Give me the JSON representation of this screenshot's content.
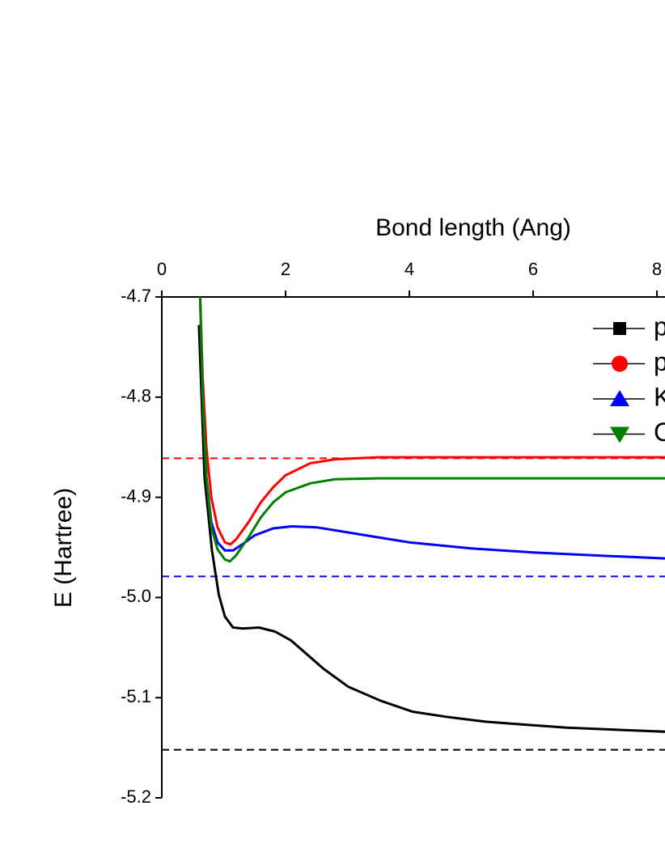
{
  "chart_data": {
    "type": "line",
    "x_label": "Bond length (Ang)",
    "y_label": "E (Hartree)",
    "xlim": [
      0,
      8.13
    ],
    "xticks": [
      0,
      2,
      4,
      6,
      8
    ],
    "ylim": [
      -5.2,
      -4.7
    ],
    "yticks": [
      {
        "value": -5.2,
        "label": "-5.2"
      },
      {
        "value": -5.1,
        "label": "-5.1"
      },
      {
        "value": -5,
        "label": "-5.0"
      },
      {
        "value": -4.9,
        "label": "-4.9"
      },
      {
        "value": -4.8,
        "label": "-4.8"
      },
      {
        "value": -4.7,
        "label": "-4.7"
      }
    ],
    "legend_position": "top-right",
    "series": [
      {
        "name": "p",
        "color": "#000000",
        "marker": "square",
        "x": [
          0.6,
          0.69,
          0.81,
          0.92,
          1.02,
          1.15,
          1.31,
          1.57,
          1.83,
          2.09,
          2.61,
          3.01,
          3.53,
          4.05,
          4.58,
          5.23,
          5.88,
          6.54,
          7.32,
          8.13
        ],
        "values": [
          -4.728,
          -4.88,
          -4.953,
          -4.997,
          -5.019,
          -5.03,
          -5.031,
          -5.03,
          -5.034,
          -5.043,
          -5.071,
          -5.089,
          -5.103,
          -5.114,
          -5.119,
          -5.124,
          -5.127,
          -5.13,
          -5.132,
          -5.134
        ]
      },
      {
        "name": "p",
        "color": "#ff0000",
        "marker": "circle",
        "x": [
          0.62,
          0.66,
          0.72,
          0.8,
          0.9,
          1.02,
          1.11,
          1.2,
          1.4,
          1.6,
          1.8,
          2.0,
          2.4,
          2.8,
          3.5,
          5,
          8.13
        ],
        "values": [
          -4.7,
          -4.78,
          -4.85,
          -4.9,
          -4.93,
          -4.945,
          -4.947,
          -4.942,
          -4.925,
          -4.905,
          -4.89,
          -4.878,
          -4.866,
          -4.862,
          -4.86,
          -4.86,
          -4.86
        ]
      },
      {
        "name": "K",
        "color": "#0000ff",
        "marker": "triangle-up",
        "x": [
          0.62,
          0.66,
          0.72,
          0.8,
          0.9,
          1.02,
          1.15,
          1.3,
          1.5,
          1.8,
          2.1,
          2.5,
          3,
          3.5,
          4,
          5,
          6,
          7,
          8.13
        ],
        "values": [
          -4.7,
          -4.8,
          -4.88,
          -4.925,
          -4.945,
          -4.953,
          -4.953,
          -4.947,
          -4.938,
          -4.931,
          -4.929,
          -4.93,
          -4.935,
          -4.94,
          -4.945,
          -4.951,
          -4.955,
          -4.958,
          -4.961
        ]
      },
      {
        "name": "C",
        "color": "#008000",
        "marker": "triangle-down",
        "x": [
          0.62,
          0.66,
          0.72,
          0.8,
          0.9,
          1.02,
          1.1,
          1.2,
          1.4,
          1.6,
          1.8,
          2.0,
          2.4,
          2.8,
          3.5,
          5,
          8.13
        ],
        "values": [
          -4.7,
          -4.8,
          -4.88,
          -4.93,
          -4.952,
          -4.962,
          -4.964,
          -4.958,
          -4.94,
          -4.92,
          -4.905,
          -4.895,
          -4.886,
          -4.882,
          -4.881,
          -4.881,
          -4.881
        ]
      }
    ],
    "reference_lines": [
      {
        "value": -4.861,
        "color": "#ff0000"
      },
      {
        "value": -4.979,
        "color": "#0000ff"
      },
      {
        "value": -5.152,
        "color": "#000000"
      }
    ]
  }
}
